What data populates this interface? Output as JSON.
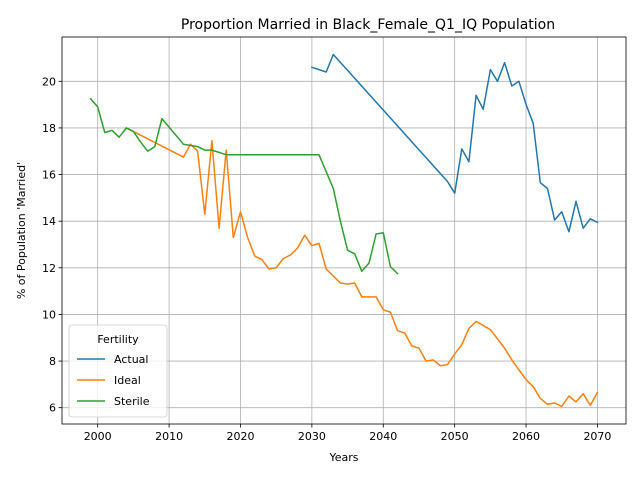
{
  "chart_data": {
    "type": "line",
    "title": "Proportion Married in Black_Female_Q1_IQ Population",
    "xlabel": "Years",
    "ylabel": "% of Population 'Married'",
    "xlim": [
      1995,
      2074
    ],
    "ylim": [
      5.3,
      21.9
    ],
    "xticks": [
      2000,
      2010,
      2020,
      2030,
      2040,
      2050,
      2060,
      2070
    ],
    "yticks": [
      6,
      8,
      10,
      12,
      14,
      16,
      18,
      20
    ],
    "grid": true,
    "legend": {
      "title": "Fertility",
      "placement": "lower-left"
    },
    "series": [
      {
        "name": "Actual",
        "color": "#1f77b4",
        "points": [
          [
            2030,
            20.6
          ],
          [
            2032,
            20.4
          ],
          [
            2033,
            21.15
          ],
          [
            2049,
            15.7
          ],
          [
            2050,
            15.2
          ],
          [
            2051,
            17.1
          ],
          [
            2052,
            16.55
          ],
          [
            2053,
            19.4
          ],
          [
            2054,
            18.8
          ],
          [
            2055,
            20.5
          ],
          [
            2056,
            20.0
          ],
          [
            2057,
            20.8
          ],
          [
            2058,
            19.8
          ],
          [
            2059,
            20.0
          ],
          [
            2060,
            19.0
          ],
          [
            2061,
            18.2
          ],
          [
            2062,
            15.65
          ],
          [
            2063,
            15.4
          ],
          [
            2064,
            14.05
          ],
          [
            2065,
            14.4
          ],
          [
            2066,
            13.55
          ],
          [
            2067,
            14.85
          ],
          [
            2068,
            13.7
          ],
          [
            2069,
            14.1
          ],
          [
            2070,
            13.95
          ]
        ]
      },
      {
        "name": "Ideal",
        "color": "#ff7f0e",
        "points": [
          [
            2004,
            18.0
          ],
          [
            2012,
            16.75
          ],
          [
            2013,
            17.3
          ],
          [
            2014,
            17.0
          ],
          [
            2015,
            14.3
          ],
          [
            2016,
            17.45
          ],
          [
            2017,
            13.7
          ],
          [
            2018,
            17.05
          ],
          [
            2019,
            13.3
          ],
          [
            2020,
            14.4
          ],
          [
            2021,
            13.3
          ],
          [
            2022,
            12.5
          ],
          [
            2023,
            12.35
          ],
          [
            2024,
            11.95
          ],
          [
            2025,
            12.0
          ],
          [
            2026,
            12.4
          ],
          [
            2027,
            12.55
          ],
          [
            2028,
            12.85
          ],
          [
            2029,
            13.4
          ],
          [
            2030,
            12.95
          ],
          [
            2031,
            13.05
          ],
          [
            2032,
            11.95
          ],
          [
            2034,
            11.35
          ],
          [
            2035,
            11.3
          ],
          [
            2036,
            11.35
          ],
          [
            2037,
            10.75
          ],
          [
            2038,
            10.75
          ],
          [
            2039,
            10.75
          ],
          [
            2040,
            10.2
          ],
          [
            2041,
            10.1
          ],
          [
            2042,
            9.3
          ],
          [
            2043,
            9.2
          ],
          [
            2044,
            8.65
          ],
          [
            2045,
            8.55
          ],
          [
            2046,
            8.0
          ],
          [
            2047,
            8.05
          ],
          [
            2048,
            7.8
          ],
          [
            2049,
            7.85
          ],
          [
            2050,
            8.3
          ],
          [
            2051,
            8.7
          ],
          [
            2052,
            9.4
          ],
          [
            2053,
            9.7
          ],
          [
            2055,
            9.35
          ],
          [
            2057,
            8.55
          ],
          [
            2058,
            8.05
          ],
          [
            2060,
            7.2
          ],
          [
            2061,
            6.9
          ],
          [
            2062,
            6.4
          ],
          [
            2063,
            6.15
          ],
          [
            2064,
            6.2
          ],
          [
            2065,
            6.05
          ],
          [
            2066,
            6.5
          ],
          [
            2067,
            6.25
          ],
          [
            2068,
            6.6
          ],
          [
            2069,
            6.1
          ],
          [
            2070,
            6.65
          ]
        ]
      },
      {
        "name": "Sterile",
        "color": "#2ca02c",
        "points": [
          [
            1999,
            19.25
          ],
          [
            2000,
            18.9
          ],
          [
            2001,
            17.8
          ],
          [
            2002,
            17.9
          ],
          [
            2003,
            17.6
          ],
          [
            2004,
            18.0
          ],
          [
            2005,
            17.85
          ],
          [
            2006,
            17.4
          ],
          [
            2007,
            17.0
          ],
          [
            2008,
            17.2
          ],
          [
            2009,
            18.4
          ],
          [
            2012,
            17.3
          ],
          [
            2014,
            17.2
          ],
          [
            2015,
            17.05
          ],
          [
            2016,
            17.05
          ],
          [
            2018,
            16.85
          ],
          [
            2031,
            16.85
          ],
          [
            2033,
            15.4
          ],
          [
            2034,
            14.0
          ],
          [
            2035,
            12.75
          ],
          [
            2036,
            12.6
          ],
          [
            2037,
            11.85
          ],
          [
            2038,
            12.2
          ],
          [
            2039,
            13.45
          ],
          [
            2040,
            13.5
          ],
          [
            2041,
            12.05
          ],
          [
            2042,
            11.75
          ]
        ]
      }
    ]
  }
}
